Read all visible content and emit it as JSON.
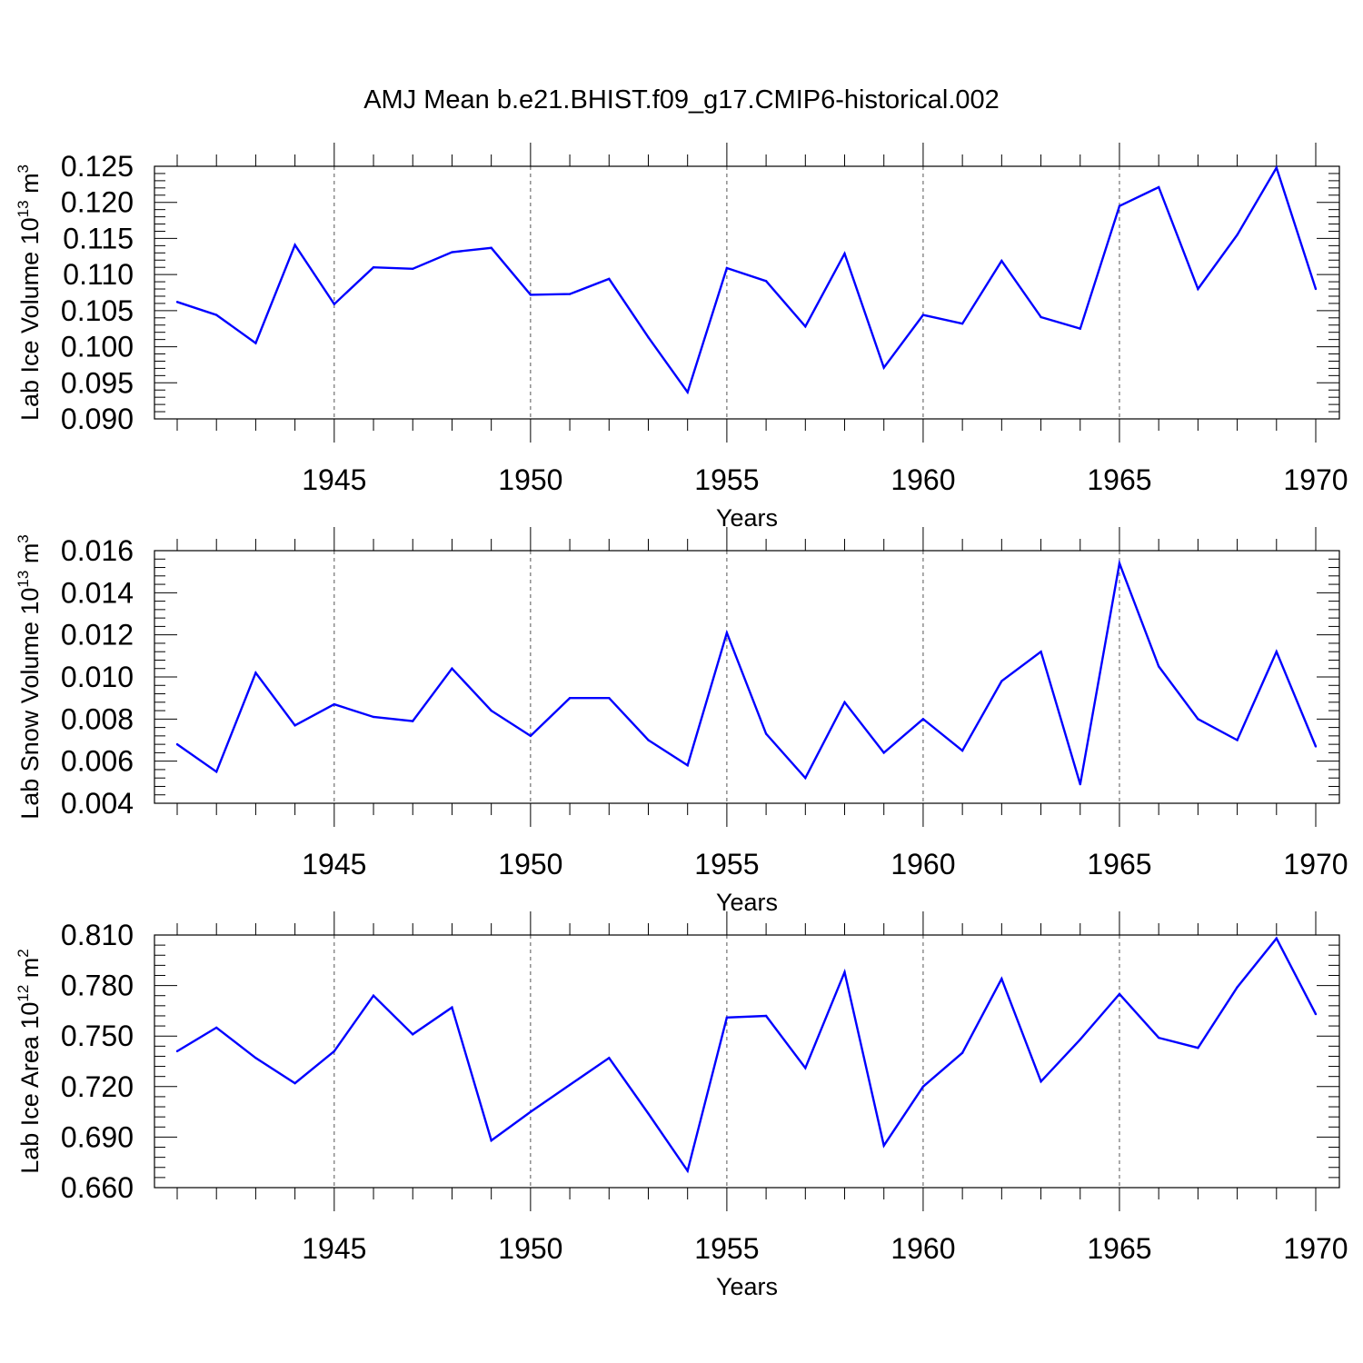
{
  "title": "AMJ Mean b.e21.BHIST.f09_g17.CMIP6-historical.002",
  "chart_data": [
    {
      "type": "line",
      "ylabel": "Lab Ice Volume 10",
      "ylabel_exp": "13",
      "ylabel_unit": " m",
      "ylabel_unit_exp": "3",
      "xlabel": "Years",
      "xlim": [
        1941,
        1970
      ],
      "ylim": [
        0.09,
        0.125
      ],
      "grid": "vertical dashed at labeled years",
      "x_ticks": [
        "1945",
        "1950",
        "1955",
        "1960",
        "1965",
        "1970"
      ],
      "y_ticks": [
        "0.090",
        "0.095",
        "0.100",
        "0.105",
        "0.110",
        "0.115",
        "0.120",
        "0.125"
      ],
      "x": [
        1941,
        1942,
        1943,
        1944,
        1945,
        1946,
        1947,
        1948,
        1949,
        1950,
        1951,
        1952,
        1953,
        1954,
        1955,
        1956,
        1957,
        1958,
        1959,
        1960,
        1961,
        1962,
        1963,
        1964,
        1965,
        1966,
        1967,
        1968,
        1969,
        1970
      ],
      "values": [
        0.1062,
        0.1044,
        0.1005,
        0.1141,
        0.1059,
        0.111,
        0.1108,
        0.1131,
        0.1137,
        0.1072,
        0.1073,
        0.1094,
        0.1013,
        0.0937,
        0.1109,
        0.1091,
        0.1028,
        0.1129,
        0.0971,
        0.1044,
        0.1032,
        0.1119,
        0.1041,
        0.1025,
        0.1195,
        0.1221,
        0.108,
        0.1155,
        0.1248,
        0.108
      ]
    },
    {
      "type": "line",
      "ylabel": "Lab Snow Volume 10",
      "ylabel_exp": "13",
      "ylabel_unit": " m",
      "ylabel_unit_exp": "3",
      "xlabel": "Years",
      "xlim": [
        1941,
        1970
      ],
      "ylim": [
        0.004,
        0.016
      ],
      "grid": "vertical dashed at labeled years",
      "x_ticks": [
        "1945",
        "1950",
        "1955",
        "1960",
        "1965",
        "1970"
      ],
      "y_ticks": [
        "0.004",
        "0.006",
        "0.008",
        "0.010",
        "0.012",
        "0.014",
        "0.016"
      ],
      "x": [
        1941,
        1942,
        1943,
        1944,
        1945,
        1946,
        1947,
        1948,
        1949,
        1950,
        1951,
        1952,
        1953,
        1954,
        1955,
        1956,
        1957,
        1958,
        1959,
        1960,
        1961,
        1962,
        1963,
        1964,
        1965,
        1966,
        1967,
        1968,
        1969,
        1970
      ],
      "values": [
        0.0068,
        0.0055,
        0.0102,
        0.0077,
        0.0087,
        0.0081,
        0.0079,
        0.0104,
        0.0084,
        0.0072,
        0.009,
        0.009,
        0.007,
        0.0058,
        0.0121,
        0.0073,
        0.0052,
        0.0088,
        0.0064,
        0.008,
        0.0065,
        0.0098,
        0.0112,
        0.0049,
        0.0154,
        0.0105,
        0.008,
        0.007,
        0.0112,
        0.0067
      ]
    },
    {
      "type": "line",
      "ylabel": "Lab Ice Area 10",
      "ylabel_exp": "12",
      "ylabel_unit": " m",
      "ylabel_unit_exp": "2",
      "xlabel": "Years",
      "xlim": [
        1941,
        1970
      ],
      "ylim": [
        0.66,
        0.81
      ],
      "grid": "vertical dashed at labeled years",
      "x_ticks": [
        "1945",
        "1950",
        "1955",
        "1960",
        "1965",
        "1970"
      ],
      "y_ticks": [
        "0.660",
        "0.690",
        "0.720",
        "0.750",
        "0.780",
        "0.810"
      ],
      "x": [
        1941,
        1942,
        1943,
        1944,
        1945,
        1946,
        1947,
        1948,
        1949,
        1950,
        1951,
        1952,
        1953,
        1954,
        1955,
        1956,
        1957,
        1958,
        1959,
        1960,
        1961,
        1962,
        1963,
        1964,
        1965,
        1966,
        1967,
        1968,
        1969,
        1970
      ],
      "values": [
        0.741,
        0.755,
        0.737,
        0.722,
        0.741,
        0.774,
        0.751,
        0.767,
        0.688,
        0.705,
        0.721,
        0.737,
        0.704,
        0.67,
        0.761,
        0.762,
        0.731,
        0.788,
        0.685,
        0.72,
        0.74,
        0.784,
        0.723,
        0.748,
        0.775,
        0.749,
        0.743,
        0.779,
        0.808,
        0.763
      ]
    }
  ]
}
